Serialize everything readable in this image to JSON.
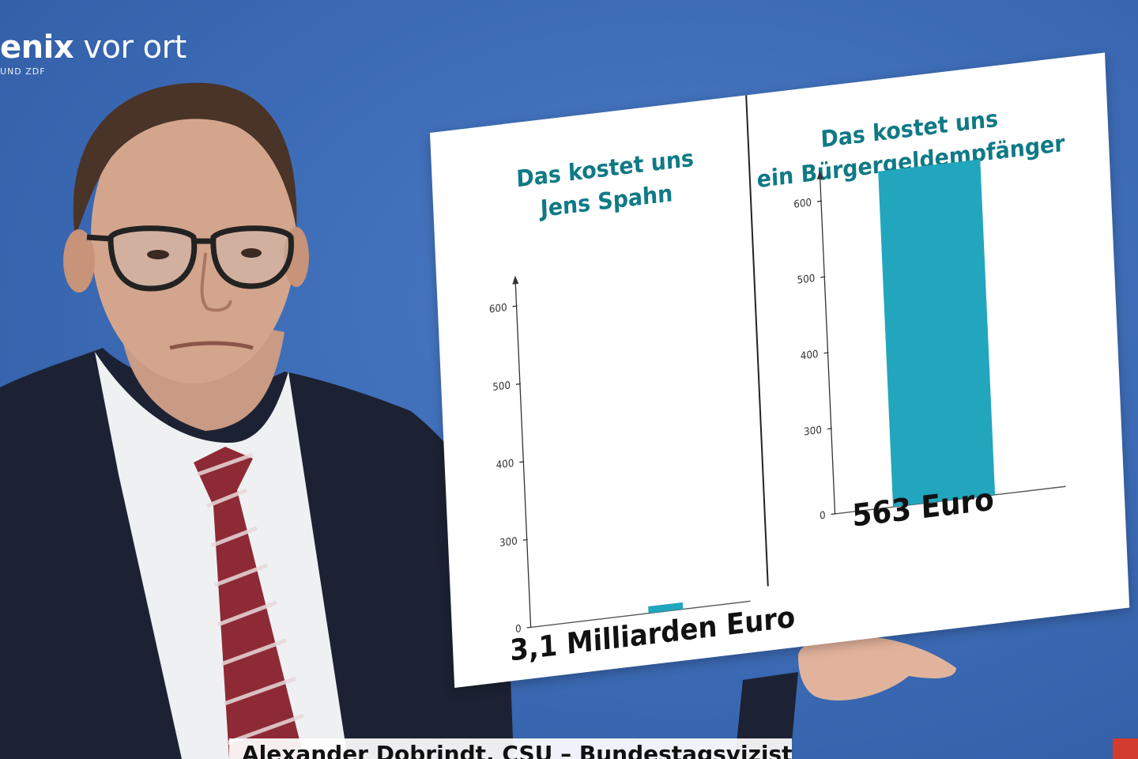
{
  "channel_logo": {
    "brand_bold": "enix",
    "brand_light": " vor ort",
    "sub": "UND ZDF"
  },
  "colors": {
    "background": "#3f6fb8",
    "title_teal": "#0f7a86",
    "bar_teal": "#22a6bd",
    "board": "#ffffff"
  },
  "board": {
    "left_panel": {
      "title_lines": [
        "Das kostet uns",
        "Jens Spahn"
      ],
      "total": "3,1 Milliarden Euro"
    },
    "right_panel": {
      "title_lines": [
        "Das kostet uns",
        "ein Bürgergeldempfänger"
      ],
      "total": "563 Euro"
    }
  },
  "chart_data": [
    {
      "type": "bar",
      "title": "Das kostet uns Jens Spahn",
      "y_ticks": [
        "0",
        "300",
        "400",
        "500",
        "600"
      ],
      "categories": [
        ""
      ],
      "values": [
        10
      ],
      "annotation": "3,1 Milliarden Euro"
    },
    {
      "type": "bar",
      "title": "Das kostet uns ein Bürgergeldempfänger",
      "y_ticks": [
        "0",
        "300",
        "400",
        "500",
        "600"
      ],
      "categories": [
        ""
      ],
      "values": [
        630
      ],
      "annotation": "563 Euro"
    }
  ],
  "lower_third": {
    "text": "Alexander Dobrindt, CSU – Bundestagsvizister"
  }
}
